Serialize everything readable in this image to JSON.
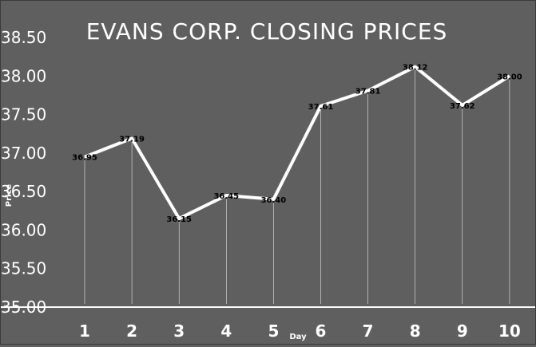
{
  "chart_data": {
    "type": "line",
    "title": "EVANS CORP. CLOSING PRICES",
    "xlabel": "Day",
    "ylabel": "Price",
    "categories": [
      "1",
      "2",
      "3",
      "4",
      "5",
      "6",
      "7",
      "8",
      "9",
      "10"
    ],
    "values": [
      36.95,
      37.19,
      36.15,
      36.45,
      36.4,
      37.61,
      37.81,
      38.12,
      37.62,
      38.0
    ],
    "data_labels": [
      "36.95",
      "37.19",
      "36.15",
      "36.45",
      "36.40",
      "37.61",
      "37.81",
      "38.12",
      "37.62",
      "38.00"
    ],
    "ylim": [
      35.0,
      38.5
    ],
    "yticks": [
      "35.00",
      "35.50",
      "36.00",
      "36.50",
      "37.00",
      "37.50",
      "38.00",
      "38.50"
    ],
    "drop_lines": true,
    "grid": false,
    "legend": "none",
    "colors": {
      "background": "#5f5f5f",
      "line": "#ffffff",
      "drop_line": "#ffffff",
      "text": "#ffffff",
      "data_label": "#000000"
    }
  }
}
